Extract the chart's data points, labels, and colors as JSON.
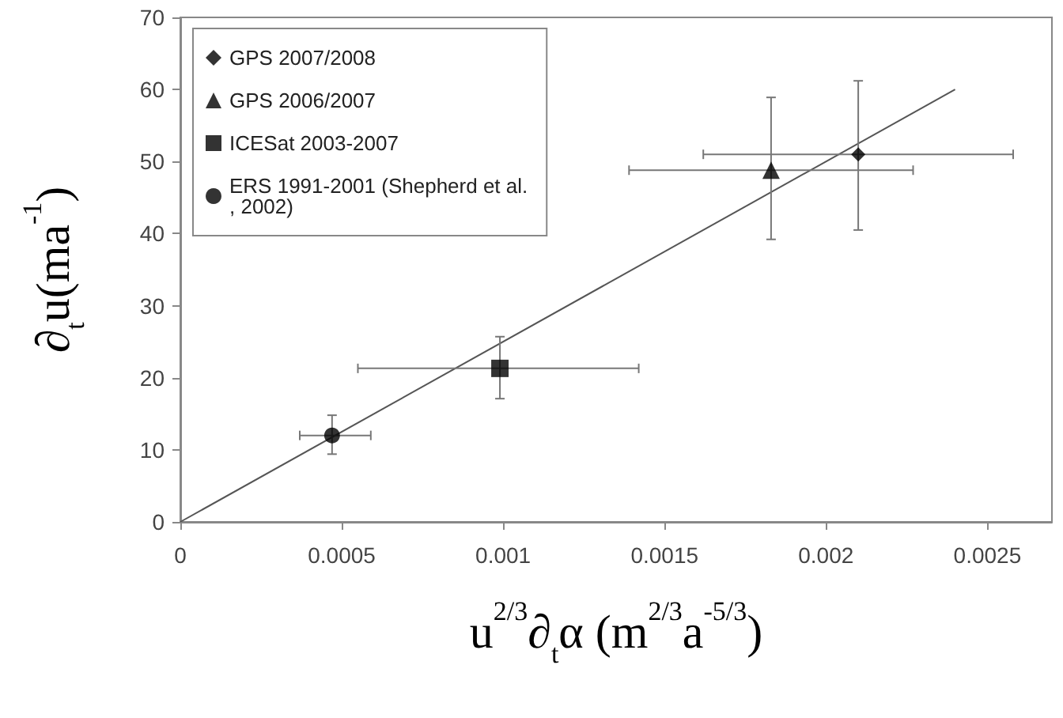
{
  "chart_data": {
    "type": "scatter",
    "xlabel": "u$^{2/3}$∂$_{t}$α (m$^{2/3}$a$^{-5/3}$)",
    "ylabel": "∂$_{t}$u(ma$^{-1}$)",
    "series": [
      {
        "name": "GPS 2007/2008",
        "color": "#000000",
        "marker": "diamond",
        "x": [
          0.0021
        ],
        "values": [
          51
        ],
        "errors": [
          [
            40.5,
            61.2
          ]
        ],
        "xerrors": [
          [
            0.00162,
            0.00258
          ]
        ]
      },
      {
        "name": "GPS 2006/2007",
        "color": "#000000",
        "marker": "triangle",
        "x": [
          0.00183
        ],
        "values": [
          48.8
        ],
        "errors": [
          [
            39.2,
            58.9
          ]
        ],
        "xerrors": [
          [
            0.00139,
            0.00227
          ]
        ]
      },
      {
        "name": "ICESat 2003-2007",
        "color": "#000000",
        "marker": "square",
        "x": [
          0.00099
        ],
        "values": [
          21.3
        ],
        "errors": [
          [
            17.1,
            25.7
          ]
        ],
        "xerrors": [
          [
            0.00055,
            0.00142
          ]
        ]
      },
      {
        "name": "ERS 1991-2001 (Shepherd et al., 2002)",
        "color": "#000000",
        "marker": "circle",
        "x": [
          0.00047
        ],
        "values": [
          12
        ],
        "errors": [
          [
            9.4,
            14.8
          ]
        ],
        "xerrors": [
          [
            0.00037,
            0.00059
          ]
        ]
      },
      {
        "type": "line",
        "color": "#555555",
        "marker": "none",
        "x": [
          0,
          0.0024
        ],
        "values": [
          0,
          60
        ]
      }
    ],
    "xlim": [
      0,
      0.0027
    ],
    "xticks": [
      0,
      0.0005,
      0.001,
      0.0015,
      0.002,
      0.0025
    ],
    "ylim": [
      0,
      70
    ],
    "yticks": [
      0,
      10,
      20,
      30,
      40,
      50,
      60,
      70
    ],
    "grid": false,
    "legend": "top left"
  }
}
